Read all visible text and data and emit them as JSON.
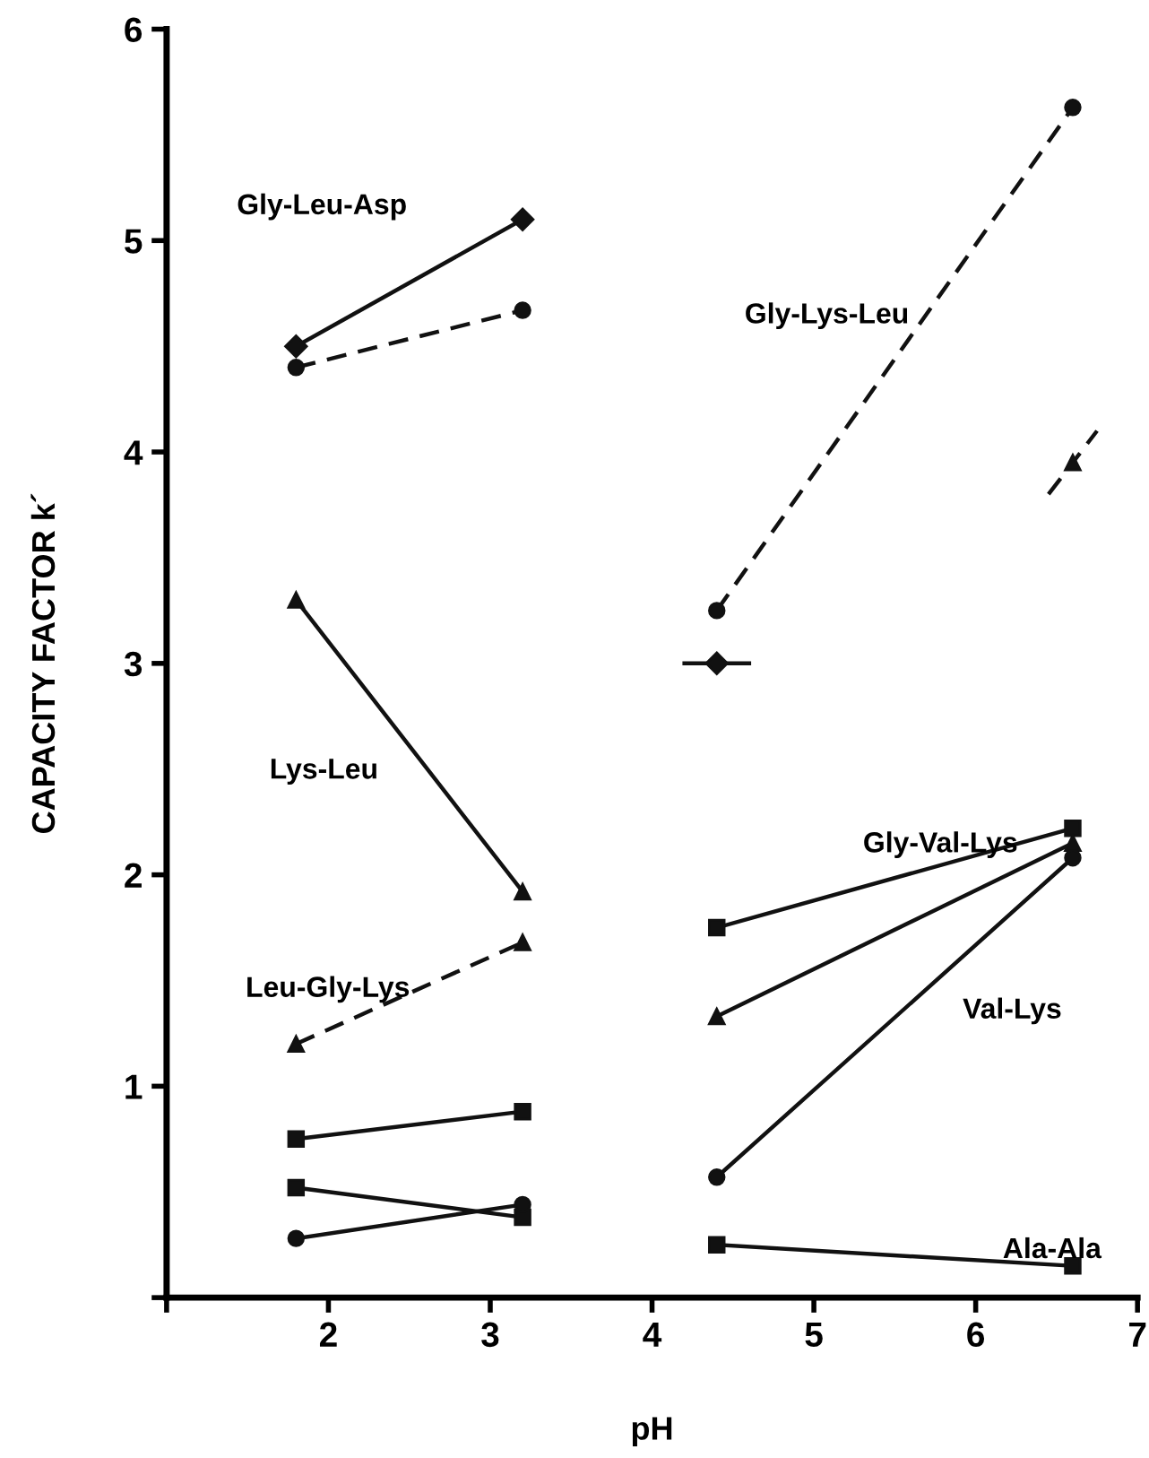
{
  "chart_data": {
    "type": "line",
    "xlabel": "pH",
    "ylabel": "CAPACITY FACTOR k´",
    "xlim": [
      1,
      7
    ],
    "ylim": [
      0,
      6
    ],
    "xticks": [
      {
        "value": 1,
        "label": null
      },
      2,
      3,
      4,
      5,
      6,
      7
    ],
    "yticks": [
      {
        "value": 0,
        "label": null
      },
      1,
      2,
      3,
      4,
      5,
      6
    ],
    "grid": false,
    "legend": false,
    "series": [
      {
        "color": "#111111",
        "x": [
          1.8,
          3.2
        ],
        "values": [
          4.5,
          5.1
        ],
        "marker": "diamond",
        "line_style": "solid"
      },
      {
        "color": "#111111",
        "x": [
          1.8,
          3.2
        ],
        "values": [
          4.4,
          4.67
        ],
        "marker": "circle",
        "line_style": "dashed"
      },
      {
        "color": "#111111",
        "x": [
          1.8,
          3.2
        ],
        "values": [
          3.3,
          1.92
        ],
        "marker": "triangle",
        "line_style": "solid"
      },
      {
        "color": "#111111",
        "x": [
          1.8,
          3.2
        ],
        "values": [
          1.2,
          1.68
        ],
        "marker": "triangle",
        "line_style": "dashed"
      },
      {
        "color": "#111111",
        "x": [
          1.8,
          3.2
        ],
        "values": [
          0.75,
          0.88
        ],
        "marker": "square",
        "line_style": "solid"
      },
      {
        "color": "#111111",
        "x": [
          1.8,
          3.2
        ],
        "values": [
          0.52,
          0.38
        ],
        "marker": "square",
        "line_style": "solid"
      },
      {
        "color": "#111111",
        "x": [
          1.8,
          3.2
        ],
        "values": [
          0.28,
          0.44
        ],
        "marker": "circle",
        "line_style": "solid"
      },
      {
        "color": "#111111",
        "x": [
          4.4,
          6.6
        ],
        "values": [
          3.25,
          5.63
        ],
        "marker": "circle",
        "line_style": "dashed"
      },
      {
        "color": "#111111",
        "x": [
          4.2,
          4.6
        ],
        "values": [
          3.0,
          3.0
        ],
        "marker": "none",
        "line_style": "solid"
      },
      {
        "type": "scatter",
        "color": "#111111",
        "x": [
          4.4
        ],
        "values": [
          3.0
        ],
        "marker": "diamond"
      },
      {
        "color": "#111111",
        "x": [
          6.45,
          6.75
        ],
        "values": [
          3.8,
          4.1
        ],
        "marker": "none",
        "line_style": "dashed"
      },
      {
        "type": "scatter",
        "color": "#111111",
        "x": [
          6.6
        ],
        "values": [
          3.95
        ],
        "marker": "triangle"
      },
      {
        "color": "#111111",
        "x": [
          4.4,
          6.6
        ],
        "values": [
          1.75,
          2.22
        ],
        "marker": "square",
        "line_style": "solid"
      },
      {
        "color": "#111111",
        "x": [
          4.4,
          6.6
        ],
        "values": [
          1.33,
          2.15
        ],
        "marker": "triangle",
        "line_style": "solid"
      },
      {
        "color": "#111111",
        "x": [
          4.4,
          6.6
        ],
        "values": [
          0.57,
          2.08
        ],
        "marker": "circle",
        "line_style": "solid"
      },
      {
        "color": "#111111",
        "x": [
          4.4,
          6.6
        ],
        "values": [
          0.25,
          0.15
        ],
        "marker": "square",
        "line_style": "solid"
      }
    ],
    "annotations": [
      "Gly-Leu-Asp",
      "Gly-Lys-Leu",
      "Lys-Leu",
      "Leu-Gly-Lys",
      "Gly-Val-Lys",
      "Val-Lys",
      "Ala-Ala"
    ]
  }
}
